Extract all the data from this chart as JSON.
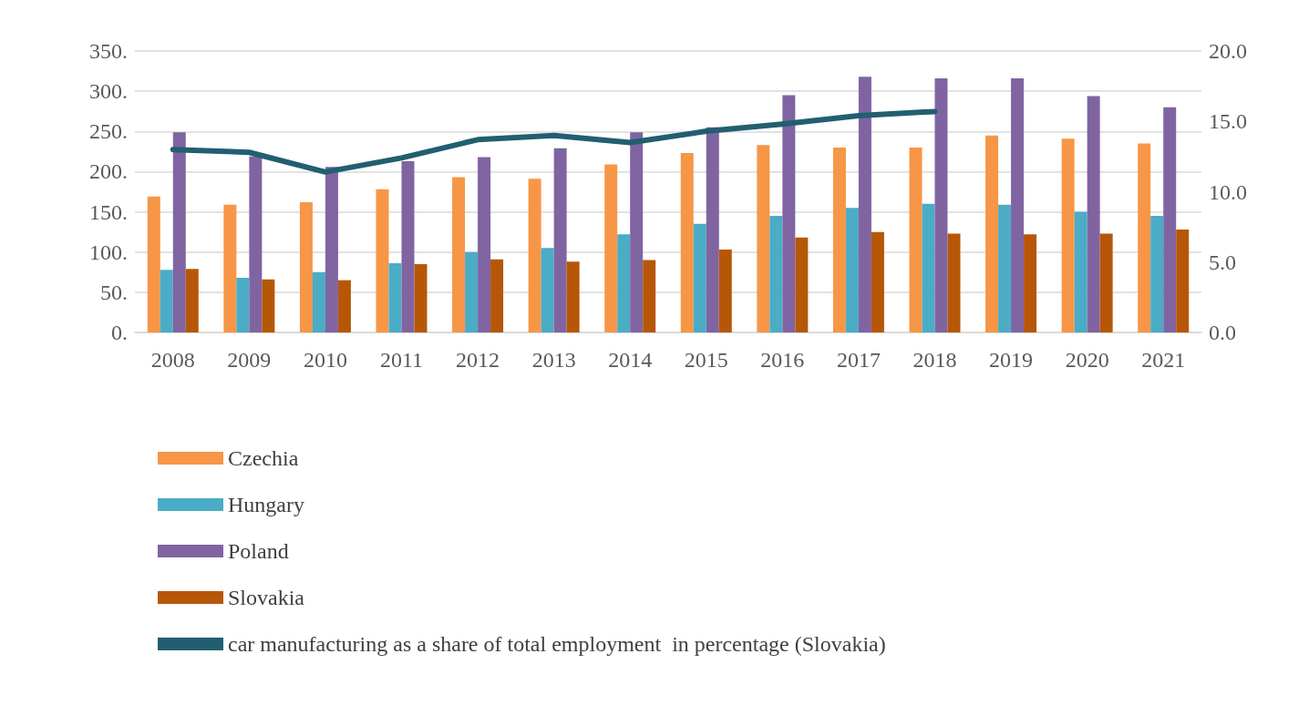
{
  "chart_data": {
    "type": "bar",
    "categories": [
      "2008",
      "2009",
      "2010",
      "2011",
      "2012",
      "2013",
      "2014",
      "2015",
      "2016",
      "2017",
      "2018",
      "2019",
      "2020",
      "2021"
    ],
    "series": [
      {
        "name": "Czechia",
        "color": "#f79646",
        "values": [
          169,
          159,
          162,
          178,
          193,
          191,
          209,
          223,
          233,
          230,
          230,
          245,
          241,
          235
        ]
      },
      {
        "name": "Hungary",
        "color": "#4bacc6",
        "values": [
          78,
          68,
          75,
          86,
          100,
          105,
          122,
          135,
          145,
          155,
          160,
          159,
          150,
          145
        ]
      },
      {
        "name": "Poland",
        "color": "#8064a2",
        "values": [
          249,
          219,
          206,
          213,
          218,
          229,
          249,
          255,
          295,
          318,
          316,
          316,
          294,
          280
        ]
      },
      {
        "name": "Slovakia",
        "color": "#b65708",
        "values": [
          79,
          66,
          65,
          85,
          91,
          88,
          90,
          103,
          118,
          125,
          123,
          122,
          123,
          128
        ]
      },
      {
        "name": "car manufacturing as a share of total employment  in percentage (Slovakia)",
        "type": "line",
        "axis": "y2",
        "color": "#215f70",
        "values": [
          13.0,
          12.8,
          11.4,
          12.4,
          13.7,
          14.0,
          13.5,
          14.3,
          14.8,
          15.4,
          15.7,
          null,
          null,
          null
        ]
      }
    ],
    "ylim": [
      0,
      350
    ],
    "yticks": [
      {
        "value": 0,
        "label": "0."
      },
      {
        "value": 50,
        "label": "50."
      },
      {
        "value": 100,
        "label": "100."
      },
      {
        "value": 150,
        "label": "150."
      },
      {
        "value": 200,
        "label": "200."
      },
      {
        "value": 250,
        "label": "250."
      },
      {
        "value": 300,
        "label": "300."
      },
      {
        "value": 350,
        "label": "350."
      }
    ],
    "y2lim": [
      0,
      20
    ],
    "y2ticks": [
      {
        "value": 0,
        "label": "0.0"
      },
      {
        "value": 5,
        "label": "5.0"
      },
      {
        "value": 10,
        "label": "10.0"
      },
      {
        "value": 15,
        "label": "15.0"
      },
      {
        "value": 20,
        "label": "20.0"
      }
    ],
    "grid": "y",
    "legend": "bottom",
    "marker": "none"
  }
}
